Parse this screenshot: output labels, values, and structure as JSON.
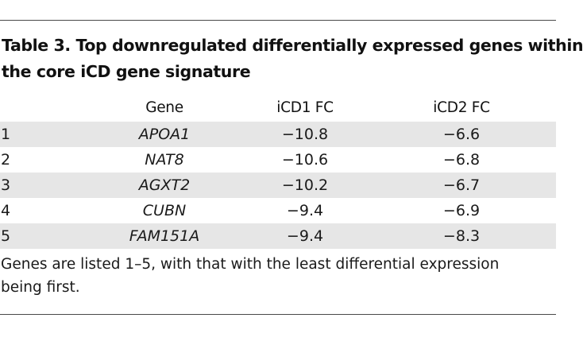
{
  "caption": {
    "line1": "Table 3. Top downregulated differentially expressed genes within",
    "line2": "the core iCD gene signature"
  },
  "table": {
    "headers": [
      "",
      "Gene",
      "iCD1 FC",
      "iCD2 FC"
    ],
    "rows": [
      {
        "rank": "1",
        "gene": "APOA1",
        "icd1_fc": "−10.8",
        "icd2_fc": "−6.6"
      },
      {
        "rank": "2",
        "gene": "NAT8",
        "icd1_fc": "−10.6",
        "icd2_fc": "−6.8"
      },
      {
        "rank": "3",
        "gene": "AGXT2",
        "icd1_fc": "−10.2",
        "icd2_fc": "−6.7"
      },
      {
        "rank": "4",
        "gene": "CUBN",
        "icd1_fc": "−9.4",
        "icd2_fc": "−6.9"
      },
      {
        "rank": "5",
        "gene": "FAM151A",
        "icd1_fc": "−9.4",
        "icd2_fc": "−8.3"
      }
    ]
  },
  "footnote": {
    "line1": "Genes are listed 1–5, with that with the least differential expression",
    "line2": "being first."
  },
  "colors": {
    "rule": "#4a4a4a",
    "row_shade": "#e6e6e6",
    "text": "#1a1a1a"
  }
}
